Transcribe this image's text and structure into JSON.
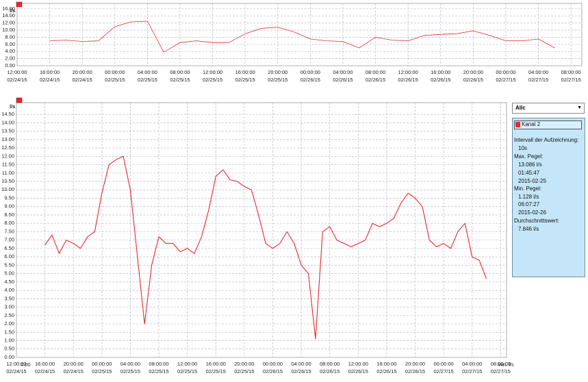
{
  "chart_data": [
    {
      "type": "line",
      "y_label": "l/s",
      "color": "#e8282b",
      "x": [
        "2015-02-24T16:00",
        "2015-02-24T18:00",
        "2015-02-24T20:00",
        "2015-02-24T22:00",
        "2015-02-25T00:00",
        "2015-02-25T02:00",
        "2015-02-25T04:00",
        "2015-02-25T06:00",
        "2015-02-25T08:00",
        "2015-02-25T10:00",
        "2015-02-25T12:00",
        "2015-02-25T14:00",
        "2015-02-25T16:00",
        "2015-02-25T18:00",
        "2015-02-25T20:00",
        "2015-02-25T22:00",
        "2015-02-26T00:00",
        "2015-02-26T02:00",
        "2015-02-26T04:00",
        "2015-02-26T06:00",
        "2015-02-26T08:00",
        "2015-02-26T10:00",
        "2015-02-26T12:00",
        "2015-02-26T14:00",
        "2015-02-26T16:00",
        "2015-02-26T18:00",
        "2015-02-26T20:00",
        "2015-02-26T22:00",
        "2015-02-27T00:00",
        "2015-02-27T02:00",
        "2015-02-27T04:00",
        "2015-02-27T06:00"
      ],
      "values": [
        7.0,
        7.2,
        6.8,
        7.0,
        11.0,
        12.3,
        12.5,
        3.8,
        6.5,
        7.0,
        6.5,
        6.5,
        9.0,
        10.5,
        10.8,
        9.5,
        7.5,
        7.0,
        6.8,
        5.0,
        8.0,
        7.2,
        7.0,
        8.5,
        8.8,
        9.0,
        9.8,
        8.5,
        7.0,
        7.0,
        7.5,
        5.0
      ],
      "xlim": [
        "2015-02-24T12:00",
        "2015-02-27T09:20"
      ],
      "ylim": [
        0,
        17.5
      ],
      "yticks": [
        {
          "value": 0,
          "label": "0.00"
        },
        {
          "value": 2,
          "label": "2.00"
        },
        {
          "value": 4,
          "label": "4.00"
        },
        {
          "value": 6,
          "label": "6.00"
        },
        {
          "value": 8,
          "label": "8.00"
        },
        {
          "value": 10,
          "label": "10.00"
        },
        {
          "value": 12,
          "label": "12.00"
        },
        {
          "value": 14,
          "label": "14.00"
        },
        {
          "value": 16,
          "label": "16.00"
        }
      ],
      "xticks": [
        {
          "value": "2015-02-24T12:00",
          "label": "12:00:00"
        },
        {
          "value": "2015-02-24T16:00",
          "label": "16:00:00"
        },
        {
          "value": "2015-02-24T20:00",
          "label": "20:00:00"
        },
        {
          "value": "2015-02-25T00:00",
          "label": "00:00:00"
        },
        {
          "value": "2015-02-25T04:00",
          "label": "04:00:00"
        },
        {
          "value": "2015-02-25T08:00",
          "label": "08:00:00"
        },
        {
          "value": "2015-02-25T12:00",
          "label": "12:00:00"
        },
        {
          "value": "2015-02-25T16:00",
          "label": "16:00:00"
        },
        {
          "value": "2015-02-25T20:00",
          "label": "20:00:00"
        },
        {
          "value": "2015-02-26T00:00",
          "label": "00:00:00"
        },
        {
          "value": "2015-02-26T04:00",
          "label": "04:00:00"
        },
        {
          "value": "2015-02-26T08:00",
          "label": "08:00:00"
        },
        {
          "value": "2015-02-26T12:00",
          "label": "12:00:00"
        },
        {
          "value": "2015-02-26T16:00",
          "label": "16:00:00"
        },
        {
          "value": "2015-02-26T20:00",
          "label": "20:00:00"
        },
        {
          "value": "2015-02-27T00:00",
          "label": "00:00:00"
        },
        {
          "value": "2015-02-27T04:00",
          "label": "04:00:00"
        },
        {
          "value": "2015-02-27T08:00",
          "label": "08:00:00"
        }
      ],
      "xtick_dates": [
        "02/24/15",
        "02/24/15",
        "02/24/15",
        "02/25/15",
        "02/25/15",
        "02/25/15",
        "02/25/15",
        "02/25/15",
        "02/25/15",
        "02/26/15",
        "02/26/15",
        "02/26/15",
        "02/26/15",
        "02/26/15",
        "02/26/15",
        "02/27/15",
        "02/27/15",
        "02/27/15"
      ],
      "grid": true
    },
    {
      "type": "line",
      "y_label": "l/s",
      "x_label": "Min. l/s",
      "corner_label": "0.00",
      "series": [
        {
          "name": "Kanal 2",
          "color": "#e8282b",
          "values": [
            6.7,
            7.3,
            6.2,
            7.0,
            6.8,
            6.5,
            7.2,
            7.5,
            9.8,
            11.5,
            11.8,
            12.0,
            10.0,
            6.0,
            2.0,
            5.5,
            7.2,
            6.8,
            6.8,
            6.3,
            6.5,
            6.2,
            7.2,
            8.8,
            10.8,
            11.2,
            10.6,
            10.5,
            10.2,
            10.0,
            8.5,
            6.8,
            6.5,
            6.8,
            7.5,
            6.8,
            5.5,
            5.0,
            1.1,
            7.5,
            7.8,
            7.0,
            6.8,
            6.6,
            6.8,
            7.0,
            8.0,
            7.8,
            8.0,
            8.3,
            9.2,
            9.8,
            9.5,
            9.0,
            7.0,
            6.6,
            6.8,
            6.5,
            7.5,
            8.0,
            6.0,
            5.8,
            4.7
          ]
        }
      ],
      "x": [
        "2015-02-24T16:00",
        "2015-02-24T17:00",
        "2015-02-24T18:00",
        "2015-02-24T19:00",
        "2015-02-24T20:00",
        "2015-02-24T21:00",
        "2015-02-24T22:00",
        "2015-02-24T23:00",
        "2015-02-25T00:00",
        "2015-02-25T01:00",
        "2015-02-25T02:00",
        "2015-02-25T03:00",
        "2015-02-25T04:00",
        "2015-02-25T05:00",
        "2015-02-25T06:00",
        "2015-02-25T07:00",
        "2015-02-25T08:00",
        "2015-02-25T09:00",
        "2015-02-25T10:00",
        "2015-02-25T11:00",
        "2015-02-25T12:00",
        "2015-02-25T13:00",
        "2015-02-25T14:00",
        "2015-02-25T15:00",
        "2015-02-25T16:00",
        "2015-02-25T17:00",
        "2015-02-25T18:00",
        "2015-02-25T19:00",
        "2015-02-25T20:00",
        "2015-02-25T21:00",
        "2015-02-25T22:00",
        "2015-02-25T23:00",
        "2015-02-26T00:00",
        "2015-02-26T01:00",
        "2015-02-26T02:00",
        "2015-02-26T03:00",
        "2015-02-26T04:00",
        "2015-02-26T05:00",
        "2015-02-26T06:00",
        "2015-02-26T07:00",
        "2015-02-26T08:00",
        "2015-02-26T09:00",
        "2015-02-26T10:00",
        "2015-02-26T11:00",
        "2015-02-26T12:00",
        "2015-02-26T13:00",
        "2015-02-26T14:00",
        "2015-02-26T15:00",
        "2015-02-26T16:00",
        "2015-02-26T17:00",
        "2015-02-26T18:00",
        "2015-02-26T19:00",
        "2015-02-26T20:00",
        "2015-02-26T21:00",
        "2015-02-26T22:00",
        "2015-02-26T23:00",
        "2015-02-27T00:00",
        "2015-02-27T01:00",
        "2015-02-27T02:00",
        "2015-02-27T03:00",
        "2015-02-27T04:00",
        "2015-02-27T05:00",
        "2015-02-27T06:00"
      ],
      "xlim": [
        "2015-02-24T12:00",
        "2015-02-27T08:50"
      ],
      "ylim": [
        0,
        15.2
      ],
      "yticks": [
        {
          "value": 0,
          "label": "0.00"
        },
        {
          "value": 0.5,
          "label": "0.50"
        },
        {
          "value": 1,
          "label": "1.00"
        },
        {
          "value": 1.5,
          "label": "1.50"
        },
        {
          "value": 2,
          "label": "2.00"
        },
        {
          "value": 2.5,
          "label": "2.50"
        },
        {
          "value": 3,
          "label": "3.00"
        },
        {
          "value": 3.5,
          "label": "3.50"
        },
        {
          "value": 4,
          "label": "4.00"
        },
        {
          "value": 4.5,
          "label": "4.50"
        },
        {
          "value": 5,
          "label": "5.00"
        },
        {
          "value": 5.5,
          "label": "5.50"
        },
        {
          "value": 6,
          "label": "6.00"
        },
        {
          "value": 6.5,
          "label": "6.50"
        },
        {
          "value": 7,
          "label": "7.00"
        },
        {
          "value": 7.5,
          "label": "7.50"
        },
        {
          "value": 8,
          "label": "8.00"
        },
        {
          "value": 8.5,
          "label": "8.50"
        },
        {
          "value": 9,
          "label": "9.00"
        },
        {
          "value": 9.5,
          "label": "9.50"
        },
        {
          "value": 10,
          "label": "10.00"
        },
        {
          "value": 10.5,
          "label": "10.50"
        },
        {
          "value": 11,
          "label": "11.00"
        },
        {
          "value": 11.5,
          "label": "11.50"
        },
        {
          "value": 12,
          "label": "12.00"
        },
        {
          "value": 12.5,
          "label": "12.50"
        },
        {
          "value": 13,
          "label": "13.00"
        },
        {
          "value": 13.5,
          "label": "13.50"
        },
        {
          "value": 14,
          "label": "14.00"
        },
        {
          "value": 14.5,
          "label": "14.50"
        }
      ],
      "xticks": [
        {
          "value": "2015-02-24T12:00",
          "label": "12:00:00"
        },
        {
          "value": "2015-02-24T16:00",
          "label": "16:00:00"
        },
        {
          "value": "2015-02-24T20:00",
          "label": "20:00:00"
        },
        {
          "value": "2015-02-25T00:00",
          "label": "00:00:00"
        },
        {
          "value": "2015-02-25T04:00",
          "label": "04:00:00"
        },
        {
          "value": "2015-02-25T08:00",
          "label": "08:00:00"
        },
        {
          "value": "2015-02-25T12:00",
          "label": "12:00:00"
        },
        {
          "value": "2015-02-25T16:00",
          "label": "16:00:00"
        },
        {
          "value": "2015-02-25T20:00",
          "label": "20:00:00"
        },
        {
          "value": "2015-02-26T00:00",
          "label": "00:00:00"
        },
        {
          "value": "2015-02-26T04:00",
          "label": "04:00:00"
        },
        {
          "value": "2015-02-26T08:00",
          "label": "08:00:00"
        },
        {
          "value": "2015-02-26T12:00",
          "label": "12:00:00"
        },
        {
          "value": "2015-02-26T16:00",
          "label": "16:00:00"
        },
        {
          "value": "2015-02-26T20:00",
          "label": "20:00:00"
        },
        {
          "value": "2015-02-27T00:00",
          "label": "00:00:00"
        },
        {
          "value": "2015-02-27T04:00",
          "label": "04:00:00"
        },
        {
          "value": "2015-02-27T08:00",
          "label": "08:00:00"
        }
      ],
      "xtick_dates": [
        "02/24/15",
        "02/24/15",
        "02/24/15",
        "02/25/15",
        "02/25/15",
        "02/25/15",
        "02/25/15",
        "02/25/15",
        "02/25/15",
        "02/26/15",
        "02/26/15",
        "02/26/15",
        "02/26/15",
        "02/26/15",
        "02/26/15",
        "02/27/15",
        "02/27/15",
        "02/27/15"
      ],
      "grid": true
    }
  ],
  "panel": {
    "dropdown": "Allc",
    "interval_label": "Intervall der Aufzeichnung:",
    "interval": "10s",
    "max_label": "Max. Pegel:",
    "max_value": "13.086 l/s",
    "max_time": "01:45:47",
    "max_date": "2015-02-25",
    "min_label": "Min. Pegel:",
    "min_value": "1.128 l/s",
    "min_time": "06:07:27",
    "min_date": "2015-02-26",
    "avg_label": "Durchschnittswert:",
    "avg_value": "7.846 l/s"
  }
}
